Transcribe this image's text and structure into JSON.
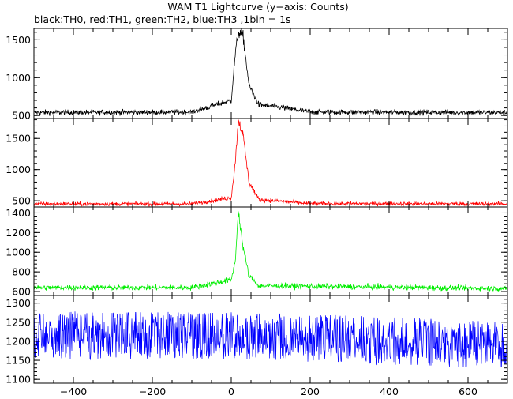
{
  "chart_data": {
    "type": "line",
    "title": "WAM T1 Lightcurve (y−axis: Counts)",
    "subtitle": "black:TH0, red:TH1, green:TH2, blue:TH3 ,1bin = 1s",
    "x_range": [
      -500,
      700
    ],
    "x_ticks": [
      -400,
      -200,
      0,
      200,
      400,
      600
    ],
    "x_tick_labels": [
      "−400",
      "−200",
      "0",
      "200",
      "400",
      "600"
    ],
    "bin_seconds": 1,
    "grid": false,
    "panels": [
      {
        "name": "TH0",
        "color": "#000000",
        "ylim": [
          460,
          1650
        ],
        "y_ticks": [
          500,
          1000,
          1500
        ],
        "background": 540,
        "noise": 25,
        "peak_time": 18,
        "peak_value": 1600,
        "secondary_peak_time": 30,
        "secondary_peak_value": 1550,
        "bump_time": 110,
        "bump_value": 620,
        "samples": [
          {
            "t": -500,
            "v": 540
          },
          {
            "t": -100,
            "v": 545
          },
          {
            "t": 0,
            "v": 700
          },
          {
            "t": 10,
            "v": 1300
          },
          {
            "t": 18,
            "v": 1600
          },
          {
            "t": 30,
            "v": 1550
          },
          {
            "t": 45,
            "v": 900
          },
          {
            "t": 70,
            "v": 640
          },
          {
            "t": 110,
            "v": 620
          },
          {
            "t": 200,
            "v": 545
          },
          {
            "t": 700,
            "v": 540
          }
        ]
      },
      {
        "name": "TH1",
        "color": "#ff0000",
        "ylim": [
          400,
          1820
        ],
        "y_ticks": [
          500,
          1000,
          1500
        ],
        "background": 450,
        "noise": 22,
        "peak_time": 18,
        "peak_value": 1800,
        "secondary_peak_time": 30,
        "secondary_peak_value": 1550,
        "samples": [
          {
            "t": -500,
            "v": 450
          },
          {
            "t": -100,
            "v": 450
          },
          {
            "t": 0,
            "v": 550
          },
          {
            "t": 10,
            "v": 1100
          },
          {
            "t": 18,
            "v": 1800
          },
          {
            "t": 30,
            "v": 1550
          },
          {
            "t": 45,
            "v": 800
          },
          {
            "t": 70,
            "v": 520
          },
          {
            "t": 200,
            "v": 455
          },
          {
            "t": 700,
            "v": 450
          }
        ]
      },
      {
        "name": "TH2",
        "color": "#00ee00",
        "ylim": [
          560,
          1460
        ],
        "y_ticks": [
          600,
          800,
          1000,
          1200,
          1400
        ],
        "background": 640,
        "noise": 20,
        "peak_time": 18,
        "peak_value": 1420,
        "secondary_peak_time": 30,
        "secondary_peak_value": 1050,
        "samples": [
          {
            "t": -500,
            "v": 640
          },
          {
            "t": -100,
            "v": 640
          },
          {
            "t": 0,
            "v": 720
          },
          {
            "t": 10,
            "v": 900
          },
          {
            "t": 18,
            "v": 1420
          },
          {
            "t": 30,
            "v": 1050
          },
          {
            "t": 45,
            "v": 760
          },
          {
            "t": 70,
            "v": 660
          },
          {
            "t": 700,
            "v": 630
          }
        ]
      },
      {
        "name": "TH3",
        "color": "#0000ff",
        "ylim": [
          1090,
          1320
        ],
        "y_ticks": [
          1100,
          1150,
          1200,
          1250,
          1300
        ],
        "background": 1215,
        "noise": 35,
        "samples": [
          {
            "t": -500,
            "v": 1215
          },
          {
            "t": 0,
            "v": 1215
          },
          {
            "t": 700,
            "v": 1190
          }
        ]
      }
    ]
  }
}
